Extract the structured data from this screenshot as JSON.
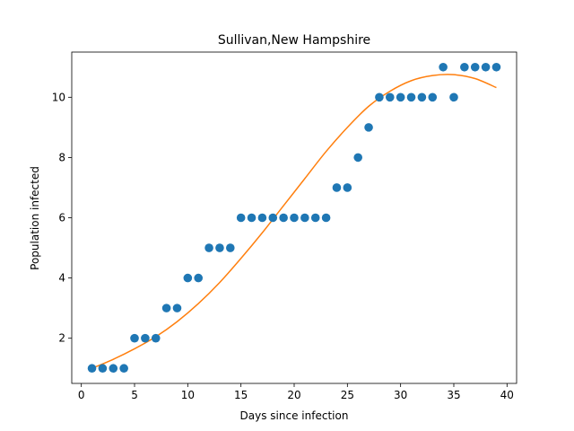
{
  "chart_data": {
    "type": "scatter",
    "title": "Sullivan,New Hampshire",
    "xlabel": "Days since infection",
    "ylabel": "Population infected",
    "xlim": [
      -0.9,
      40.9
    ],
    "ylim": [
      0.5,
      11.5
    ],
    "xticks": [
      0,
      5,
      10,
      15,
      20,
      25,
      30,
      35,
      40
    ],
    "yticks": [
      2,
      4,
      6,
      8,
      10
    ],
    "grid": false,
    "legend": "none",
    "colors": {
      "points": "#1f77b4",
      "fit": "#ff7f0e"
    },
    "series": [
      {
        "kind": "scatter",
        "x": [
          1,
          2,
          3,
          4,
          5,
          6,
          7,
          8,
          9,
          10,
          11,
          12,
          13,
          14,
          15,
          16,
          17,
          18,
          19,
          20,
          21,
          22,
          23,
          24,
          25,
          26,
          27,
          28,
          29,
          30,
          31,
          32,
          33,
          34,
          35,
          36,
          37,
          38,
          39
        ],
        "y": [
          1,
          1,
          1,
          1,
          2,
          2,
          2,
          3,
          3,
          4,
          4,
          5,
          5,
          5,
          6,
          6,
          6,
          6,
          6,
          6,
          6,
          6,
          6,
          7,
          7,
          8,
          9,
          10,
          10,
          10,
          10,
          10,
          10,
          11,
          10,
          11,
          11,
          11,
          11
        ]
      },
      {
        "kind": "line",
        "x": [
          1,
          3,
          5,
          7,
          9,
          11,
          13,
          15,
          17,
          19,
          21,
          23,
          25,
          27,
          29,
          31,
          33,
          35,
          37,
          39
        ],
        "y": [
          1.0,
          1.3,
          1.65,
          2.05,
          2.55,
          3.15,
          3.85,
          4.65,
          5.5,
          6.4,
          7.3,
          8.2,
          9.0,
          9.7,
          10.2,
          10.55,
          10.72,
          10.75,
          10.62,
          10.32
        ]
      }
    ]
  }
}
